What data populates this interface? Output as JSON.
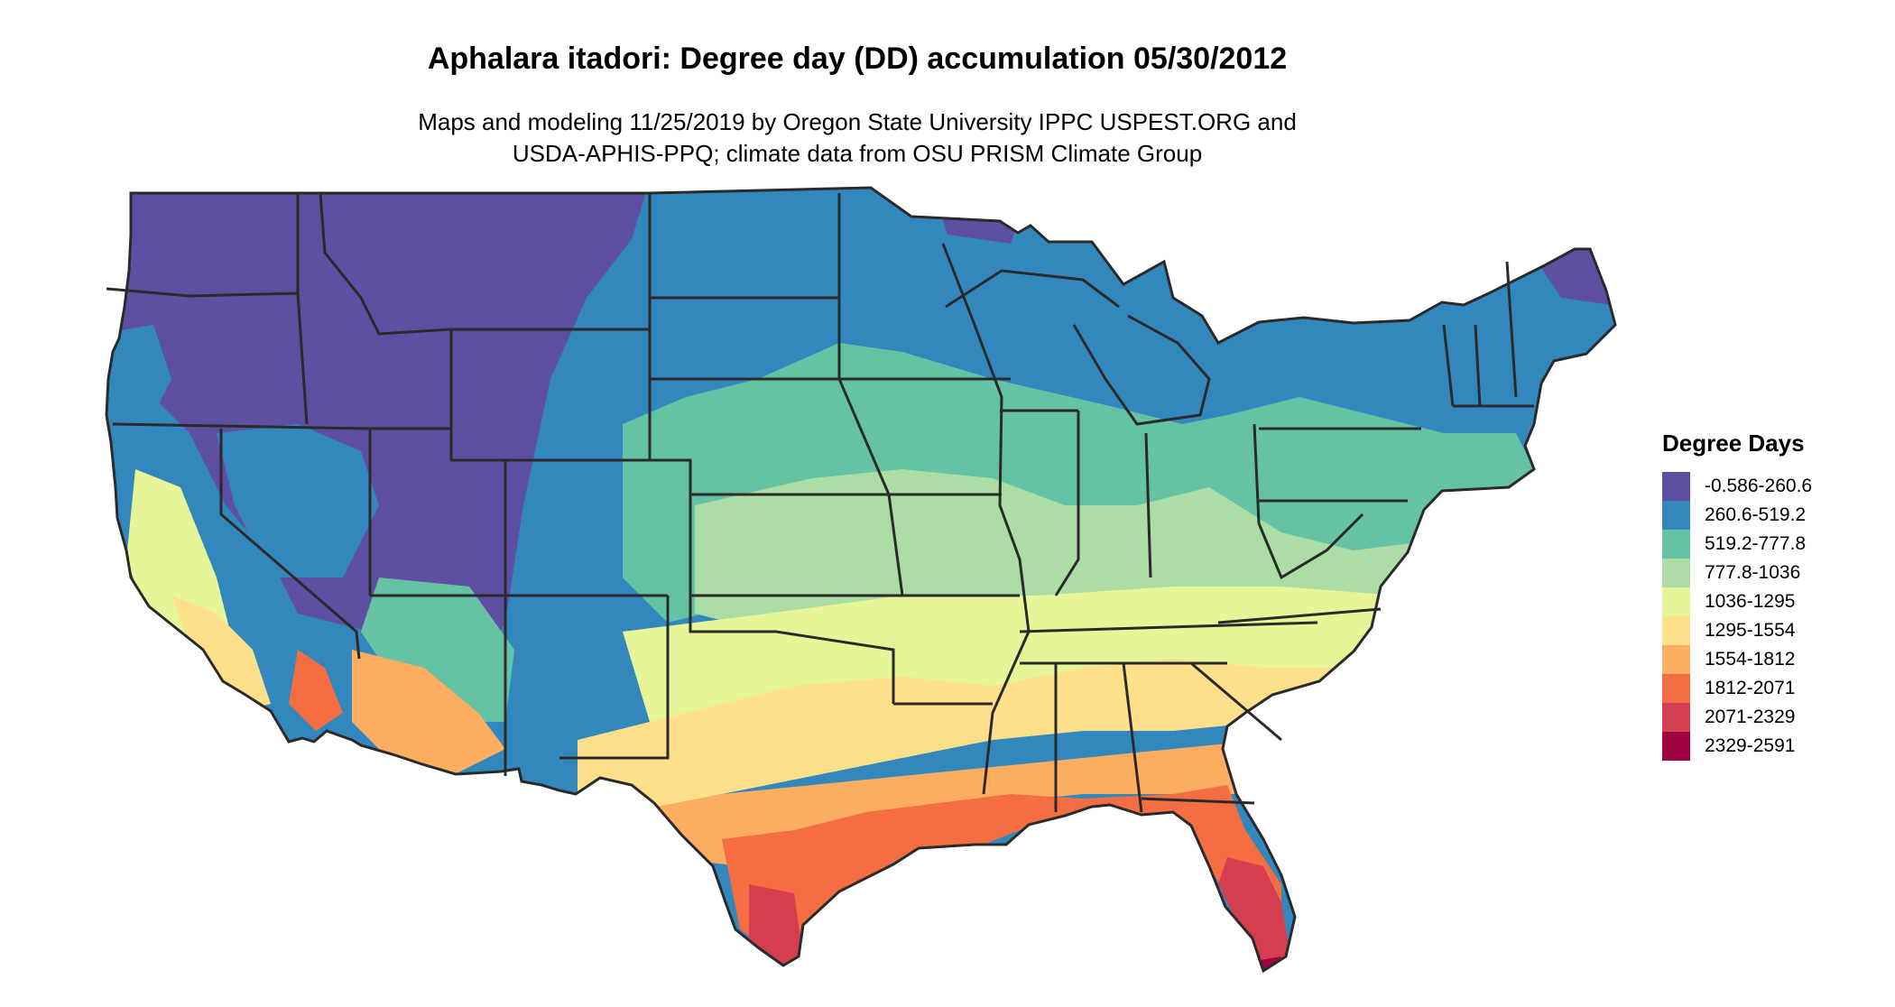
{
  "title": "Aphalara itadori: Degree day (DD) accumulation 05/30/2012",
  "subtitle_line1": "Maps and modeling 11/25/2019 by Oregon State University IPPC USPEST.ORG and",
  "subtitle_line2": "USDA-APHIS-PPQ; climate data from OSU PRISM Climate Group",
  "legend": {
    "title": "Degree Days",
    "items": [
      {
        "label": "-0.586-260.6",
        "color": "#5E4FA2"
      },
      {
        "label": "260.6-519.2",
        "color": "#3288BD"
      },
      {
        "label": "519.2-777.8",
        "color": "#66C2A5"
      },
      {
        "label": "777.8-1036",
        "color": "#ABDDA4"
      },
      {
        "label": "1036-1295",
        "color": "#E6F598"
      },
      {
        "label": "1295-1554",
        "color": "#FEE08B"
      },
      {
        "label": "1554-1812",
        "color": "#FDAE61"
      },
      {
        "label": "1812-2071",
        "color": "#F46D43"
      },
      {
        "label": "2071-2329",
        "color": "#D53E4F"
      },
      {
        "label": "2329-2591",
        "color": "#9E0142"
      }
    ]
  }
}
